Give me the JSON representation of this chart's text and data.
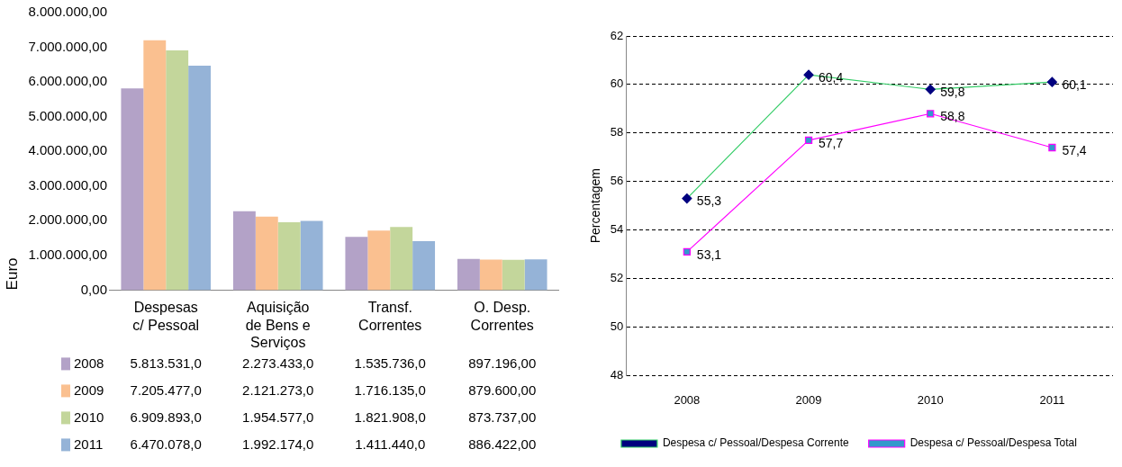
{
  "chart_data": [
    {
      "type": "bar",
      "ylabel": "Euro",
      "categories": [
        "Despesas c/ Pessoal",
        "Aquisição de Bens e Serviços",
        "Transf. Correntes",
        "O. Desp. Correntes"
      ],
      "series": [
        {
          "name": "2008",
          "color": "#b3a2c7",
          "values": [
            5813531.0,
            2273433.0,
            1535736.0,
            897196.0
          ],
          "value_labels": [
            "5.813.531,0",
            "2.273.433,0",
            "1.535.736,0",
            "897.196,00"
          ]
        },
        {
          "name": "2009",
          "color": "#fac090",
          "values": [
            7205477.0,
            2121273.0,
            1716135.0,
            879600.0
          ],
          "value_labels": [
            "7.205.477,0",
            "2.121.273,0",
            "1.716.135,0",
            "879.600,00"
          ]
        },
        {
          "name": "2010",
          "color": "#c3d69b",
          "values": [
            6909893.0,
            1954577.0,
            1821908.0,
            873737.0
          ],
          "value_labels": [
            "6.909.893,0",
            "1.954.577,0",
            "1.821.908,0",
            "873.737,00"
          ]
        },
        {
          "name": "2011",
          "color": "#95b3d7",
          "values": [
            6470078.0,
            1992174.0,
            1411440.0,
            886422.0
          ],
          "value_labels": [
            "6.470.078,0",
            "1.992.174,0",
            "1.411.440,0",
            "886.422,00"
          ]
        }
      ],
      "ylim": [
        0,
        8000000
      ],
      "yticks": [
        {
          "value": 0,
          "label": "0,00"
        },
        {
          "value": 1000000,
          "label": "1.000.000,00"
        },
        {
          "value": 2000000,
          "label": "2.000.000,00"
        },
        {
          "value": 3000000,
          "label": "3.000.000,00"
        },
        {
          "value": 4000000,
          "label": "4.000.000,00"
        },
        {
          "value": 5000000,
          "label": "5.000.000,00"
        },
        {
          "value": 6000000,
          "label": "6.000.000,00"
        },
        {
          "value": 7000000,
          "label": "7.000.000,00"
        },
        {
          "value": 8000000,
          "label": "8.000.000,00"
        }
      ],
      "grid": false,
      "legend": "bottom"
    },
    {
      "type": "line",
      "ylabel": "Percentagem",
      "categories": [
        "2008",
        "2009",
        "2010",
        "2011"
      ],
      "series": [
        {
          "name": "Despesa c/ Pessoal/Despesa Corrente",
          "color": "#33cc66",
          "marker": "diamond",
          "values": [
            55.3,
            60.4,
            59.8,
            60.1
          ],
          "value_labels": [
            "55,3",
            "60,4",
            "59,8",
            "60,1"
          ]
        },
        {
          "name": "Despesa c/ Pessoal/Despesa Total",
          "color": "#ff00ff",
          "marker": "square",
          "values": [
            53.1,
            57.7,
            58.8,
            57.4
          ],
          "value_labels": [
            "53,1",
            "57,7",
            "58,8",
            "57,4"
          ]
        }
      ],
      "ylim": [
        48,
        62
      ],
      "yticks": [
        48,
        50,
        52,
        54,
        56,
        58,
        60,
        62
      ],
      "grid": "y",
      "line_style": "solid",
      "legend": "bottom"
    }
  ]
}
